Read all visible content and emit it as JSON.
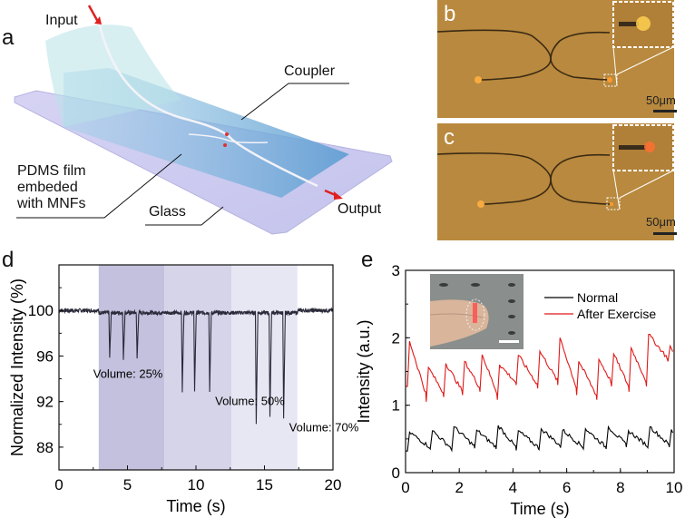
{
  "panel_a": {
    "label": "a",
    "labels": {
      "input": "Input",
      "output": "Output",
      "coupler": "Coupler",
      "pdms_line1": "PDMS film",
      "pdms_line2": "embeded",
      "pdms_line3": "with MNFs",
      "glass": "Glass"
    },
    "colors": {
      "glass": "#c9c8ef",
      "film": "#6fa8d6",
      "arrow": "#e02020"
    }
  },
  "panel_b": {
    "label": "b",
    "scale_bar": "50μm",
    "background": "#b8893e"
  },
  "panel_c": {
    "label": "c",
    "scale_bar": "50μm",
    "background": "#b8893e"
  },
  "panel_d": {
    "label": "d",
    "chart_data": {
      "type": "line",
      "xlabel": "Time (s)",
      "ylabel": "Normalized Intensity (%)",
      "xlim": [
        0,
        20
      ],
      "ylim": [
        86,
        104
      ],
      "xticks": [
        0,
        5,
        10,
        15,
        20
      ],
      "yticks": [
        88,
        92,
        96,
        100
      ],
      "baseline": 100,
      "regions": [
        {
          "label": "Volume: 25%",
          "x": [
            2.9,
            7.7
          ],
          "color": "#c3c1dd",
          "dips": [
            {
              "t": 3.7,
              "y": 96.1
            },
            {
              "t": 4.7,
              "y": 96.0
            },
            {
              "t": 5.7,
              "y": 95.9
            }
          ]
        },
        {
          "label": "Volume: 50%",
          "x": [
            7.7,
            12.6
          ],
          "color": "#d6d4e9",
          "dips": [
            {
              "t": 9.0,
              "y": 93.1
            },
            {
              "t": 9.9,
              "y": 93.2
            },
            {
              "t": 11.0,
              "y": 93.2
            }
          ]
        },
        {
          "label": "Volume: 70%",
          "x": [
            12.6,
            17.4
          ],
          "color": "#e7e6f3",
          "dips": [
            {
              "t": 14.4,
              "y": 90.3
            },
            {
              "t": 15.4,
              "y": 90.7
            },
            {
              "t": 16.4,
              "y": 90.6
            }
          ]
        }
      ],
      "line_color": "#2a2a3a"
    }
  },
  "panel_e": {
    "label": "e",
    "chart_data": {
      "type": "line",
      "xlabel": "Time (s)",
      "ylabel": "Intensity (a.u.)",
      "xlim": [
        0,
        10
      ],
      "ylim": [
        0,
        3
      ],
      "xticks": [
        0,
        2,
        4,
        6,
        8,
        10
      ],
      "yticks": [
        0,
        1,
        2,
        3
      ],
      "legend_placement": "top-right",
      "series": [
        {
          "name": "Normal",
          "color": "#000000",
          "peaks_t": [
            0.15,
            1.0,
            1.8,
            2.65,
            3.45,
            4.2,
            5.05,
            5.85,
            6.7,
            7.55,
            8.3,
            9.1,
            9.9
          ],
          "peaks_y": [
            0.6,
            0.62,
            0.68,
            0.63,
            0.7,
            0.62,
            0.65,
            0.63,
            0.65,
            0.68,
            0.62,
            0.68,
            0.64
          ],
          "trough_y": [
            0.32,
            0.35,
            0.33,
            0.36,
            0.35,
            0.33,
            0.34,
            0.37,
            0.35,
            0.35,
            0.38,
            0.37,
            0.38
          ]
        },
        {
          "name": "After Exercise",
          "color": "#e01818",
          "peaks_t": [
            0.15,
            0.85,
            1.5,
            2.2,
            2.85,
            3.5,
            4.2,
            5.0,
            5.75,
            6.45,
            7.2,
            7.75,
            8.4,
            9.05,
            9.85
          ],
          "peaks_y": [
            1.95,
            1.56,
            1.62,
            1.65,
            1.75,
            1.6,
            1.74,
            1.8,
            2.0,
            1.65,
            1.68,
            1.76,
            1.85,
            2.05,
            1.88
          ],
          "trough_y": [
            1.28,
            1.05,
            1.12,
            1.15,
            1.2,
            1.08,
            1.3,
            1.25,
            1.3,
            1.15,
            1.08,
            1.28,
            1.2,
            1.28,
            1.65
          ]
        }
      ]
    },
    "inset": {
      "description_colors": {
        "background": "#8a8e8c",
        "finger": "#d8b49a",
        "light": "#ff5050"
      }
    }
  }
}
